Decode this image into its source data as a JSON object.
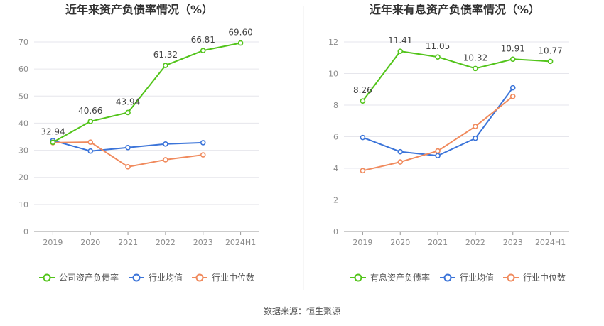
{
  "chart_data": [
    {
      "type": "line",
      "title": "近年来资产负债率情况（%）",
      "categories": [
        "2019",
        "2020",
        "2021",
        "2022",
        "2023",
        "2024H1"
      ],
      "ylim": [
        0,
        70
      ],
      "yticks": [
        0,
        10,
        20,
        30,
        40,
        50,
        60,
        70
      ],
      "grid": true,
      "legend_position": "bottom",
      "series": [
        {
          "name": "公司资产负债率",
          "color": "#52c41a",
          "labeled": true,
          "values": [
            32.94,
            40.66,
            43.94,
            61.32,
            66.81,
            69.6
          ],
          "labels": [
            "32.94",
            "40.66",
            "43.94",
            "61.32",
            "66.81",
            "69.60"
          ]
        },
        {
          "name": "行业均值",
          "color": "#3b74d9",
          "values": [
            33.6,
            29.7,
            31.0,
            32.3,
            32.8,
            null
          ]
        },
        {
          "name": "行业中位数",
          "color": "#f08a5d",
          "values": [
            32.8,
            33.0,
            23.9,
            26.5,
            28.3,
            null
          ]
        }
      ]
    },
    {
      "type": "line",
      "title": "近年来有息资产负债率情况（%）",
      "categories": [
        "2019",
        "2020",
        "2021",
        "2022",
        "2023",
        "2024H1"
      ],
      "ylim": [
        0,
        12
      ],
      "yticks": [
        0,
        2,
        4,
        6,
        8,
        10,
        12
      ],
      "grid": true,
      "legend_position": "bottom",
      "series": [
        {
          "name": "有息资产负债率",
          "color": "#52c41a",
          "labeled": true,
          "values": [
            8.26,
            11.41,
            11.05,
            10.32,
            10.91,
            10.77
          ],
          "labels": [
            "8.26",
            "11.41",
            "11.05",
            "10.32",
            "10.91",
            "10.77"
          ]
        },
        {
          "name": "行业均值",
          "color": "#3b74d9",
          "values": [
            5.95,
            5.05,
            4.8,
            5.9,
            9.1,
            null
          ]
        },
        {
          "name": "行业中位数",
          "color": "#f08a5d",
          "values": [
            3.85,
            4.4,
            5.1,
            6.65,
            8.55,
            null
          ]
        }
      ]
    }
  ],
  "footer": {
    "source": "数据来源：恒生聚源"
  }
}
